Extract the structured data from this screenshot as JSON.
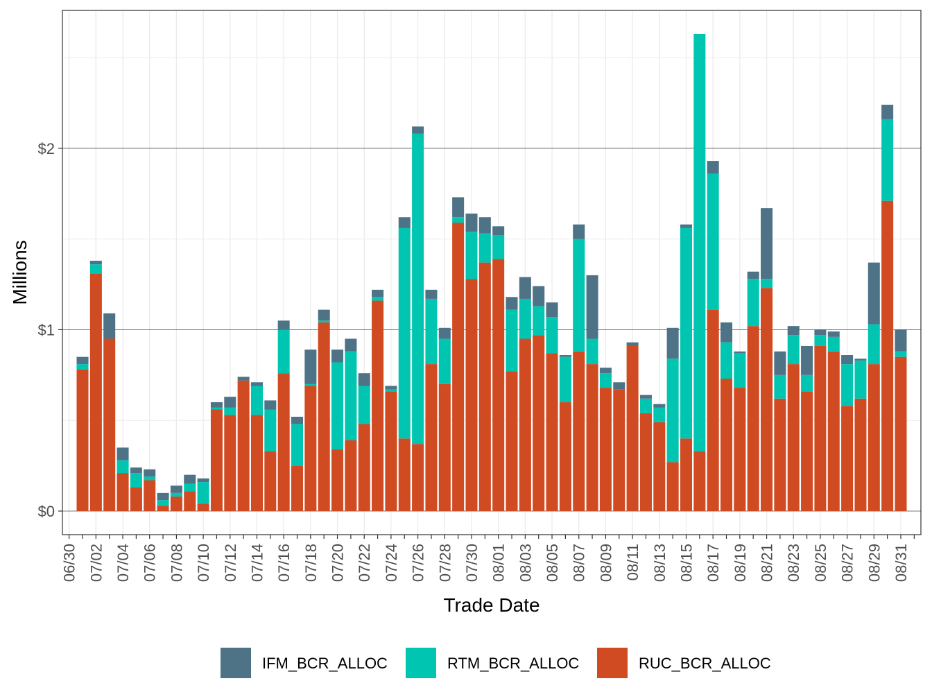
{
  "chart_data": {
    "type": "bar",
    "stacked": true,
    "xlabel": "Trade Date",
    "ylabel": "Millions",
    "y_tick_labels": [
      "$0",
      "$1",
      "$2"
    ],
    "y_ticks": [
      0,
      1,
      2
    ],
    "ylim": [
      -0.13,
      2.76
    ],
    "grid": true,
    "legend_position": "bottom",
    "x_tick_labels": [
      "06/30",
      "07/02",
      "07/04",
      "07/06",
      "07/08",
      "07/10",
      "07/12",
      "07/14",
      "07/16",
      "07/18",
      "07/20",
      "07/22",
      "07/24",
      "07/26",
      "07/28",
      "07/30",
      "08/01",
      "08/03",
      "08/05",
      "08/07",
      "08/09",
      "08/11",
      "08/13",
      "08/15",
      "08/17",
      "08/19",
      "08/21",
      "08/23",
      "08/25",
      "08/27",
      "08/29",
      "08/31"
    ],
    "categories": [
      "07/01",
      "07/02",
      "07/03",
      "07/04",
      "07/05",
      "07/06",
      "07/07",
      "07/08",
      "07/09",
      "07/10",
      "07/11",
      "07/12",
      "07/13",
      "07/14",
      "07/15",
      "07/16",
      "07/17",
      "07/18",
      "07/19",
      "07/20",
      "07/21",
      "07/22",
      "07/23",
      "07/24",
      "07/25",
      "07/26",
      "07/27",
      "07/28",
      "07/29",
      "07/30",
      "07/31",
      "08/01",
      "08/02",
      "08/03",
      "08/04",
      "08/05",
      "08/06",
      "08/07",
      "08/08",
      "08/09",
      "08/10",
      "08/11",
      "08/12",
      "08/13",
      "08/14",
      "08/15",
      "08/16",
      "08/17",
      "08/18",
      "08/19",
      "08/20",
      "08/21",
      "08/22",
      "08/23",
      "08/24",
      "08/25",
      "08/26",
      "08/27",
      "08/28",
      "08/29",
      "08/30",
      "08/31"
    ],
    "series": [
      {
        "name": "RUC_BCR_ALLOC",
        "color": "#d04a22",
        "values": [
          0.78,
          1.31,
          0.95,
          0.21,
          0.13,
          0.17,
          0.03,
          0.08,
          0.11,
          0.04,
          0.56,
          0.53,
          0.72,
          0.53,
          0.33,
          0.76,
          0.25,
          0.69,
          1.04,
          0.34,
          0.39,
          0.48,
          1.16,
          0.66,
          0.4,
          0.37,
          0.81,
          0.7,
          1.59,
          1.28,
          1.37,
          1.39,
          0.77,
          0.95,
          0.97,
          0.87,
          0.6,
          0.88,
          0.81,
          0.68,
          0.67,
          0.91,
          0.54,
          0.49,
          0.27,
          0.4,
          0.33,
          1.11,
          0.73,
          0.68,
          1.02,
          1.23,
          0.62,
          0.81,
          0.66,
          0.91,
          0.88,
          0.58,
          0.62,
          0.81,
          1.71,
          0.85
        ]
      },
      {
        "name": "RTM_BCR_ALLOC",
        "color": "#00c6b1",
        "values": [
          0.03,
          0.05,
          0.0,
          0.07,
          0.08,
          0.02,
          0.03,
          0.02,
          0.04,
          0.12,
          0.01,
          0.04,
          0.0,
          0.16,
          0.23,
          0.24,
          0.23,
          0.01,
          0.01,
          0.48,
          0.49,
          0.21,
          0.02,
          0.01,
          1.16,
          1.71,
          0.36,
          0.25,
          0.03,
          0.26,
          0.16,
          0.13,
          0.34,
          0.22,
          0.16,
          0.2,
          0.25,
          0.62,
          0.14,
          0.08,
          0.0,
          0.0,
          0.08,
          0.08,
          0.57,
          1.16,
          2.3,
          0.75,
          0.2,
          0.19,
          0.26,
          0.05,
          0.13,
          0.16,
          0.09,
          0.06,
          0.08,
          0.23,
          0.21,
          0.22,
          0.45,
          0.03
        ]
      },
      {
        "name": "IFM_BCR_ALLOC",
        "color": "#4e7286",
        "values": [
          0.04,
          0.02,
          0.14,
          0.07,
          0.03,
          0.04,
          0.04,
          0.04,
          0.05,
          0.02,
          0.03,
          0.06,
          0.02,
          0.02,
          0.05,
          0.05,
          0.04,
          0.19,
          0.06,
          0.07,
          0.07,
          0.07,
          0.04,
          0.02,
          0.06,
          0.04,
          0.05,
          0.06,
          0.11,
          0.1,
          0.09,
          0.05,
          0.07,
          0.12,
          0.11,
          0.08,
          0.01,
          0.08,
          0.35,
          0.03,
          0.04,
          0.02,
          0.02,
          0.02,
          0.17,
          0.02,
          0.0,
          0.07,
          0.11,
          0.01,
          0.04,
          0.39,
          0.13,
          0.05,
          0.16,
          0.03,
          0.03,
          0.05,
          0.01,
          0.34,
          0.08,
          0.12
        ]
      }
    ],
    "legend_order": [
      "IFM_BCR_ALLOC",
      "RTM_BCR_ALLOC",
      "RUC_BCR_ALLOC"
    ]
  }
}
